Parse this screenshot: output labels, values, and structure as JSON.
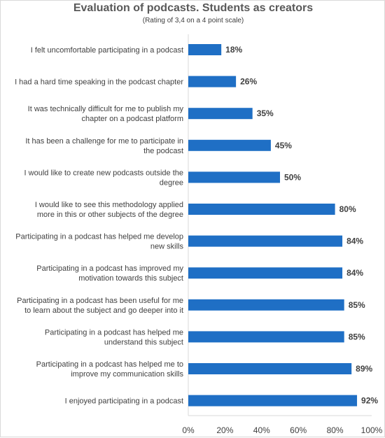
{
  "chart_data": {
    "type": "bar",
    "orientation": "horizontal",
    "title": "Evaluation of podcasts. Students as creators",
    "subtitle": "(Rating of 3,4 on a 4 point scale)",
    "categories": [
      "I felt uncomfortable participating in a podcast",
      "I had a hard time speaking in the podcast chapter",
      "It was technically difficult for me to publish my chapter on a podcast platform",
      "It has been a challenge for me to participate in the podcast",
      "I would like to create new podcasts outside the degree",
      "I would like to see this methodology applied more in this or other subjects of the degree",
      "Participating in a podcast has helped me develop new skills",
      "Participating in a podcast has improved my motivation towards this subject",
      "Participating in a podcast has been useful for me to learn about the subject and go deeper into it",
      "Participating in a podcast has helped me understand this subject",
      "Participating in a podcast has helped me to improve my communication skills",
      "I enjoyed participating in a podcast"
    ],
    "category_lines": [
      [
        "I felt uncomfortable participating in a podcast"
      ],
      [
        "I had a hard time speaking in the podcast chapter"
      ],
      [
        "It was technically difficult for me to publish my",
        "chapter on a podcast platform"
      ],
      [
        "It has been a challenge for me to participate in",
        "the podcast"
      ],
      [
        "I would like to create new podcasts outside the",
        "degree"
      ],
      [
        "I would like to see this methodology applied",
        "more in this or other subjects of the degree"
      ],
      [
        "Participating in a podcast has helped me develop",
        "new skills"
      ],
      [
        "Participating in a podcast has improved my",
        "motivation towards this subject"
      ],
      [
        "Participating in a podcast has been useful for me",
        "to learn about the subject and go deeper into it"
      ],
      [
        "Participating in a podcast has helped me",
        "understand this subject"
      ],
      [
        "Participating in a podcast has helped me to",
        "improve my communication skills"
      ],
      [
        "I enjoyed participating in a podcast"
      ]
    ],
    "values": [
      18,
      26,
      35,
      45,
      50,
      80,
      84,
      84,
      85,
      85,
      89,
      92
    ],
    "value_labels": [
      "18%",
      "26%",
      "35%",
      "45%",
      "50%",
      "80%",
      "84%",
      "84%",
      "85%",
      "85%",
      "89%",
      "92%"
    ],
    "x_ticks": [
      "0%",
      "20%",
      "40%",
      "60%",
      "80%",
      "100%"
    ],
    "xlim": [
      0,
      100
    ],
    "grid": false,
    "legend": "none",
    "bar_color": "#1f6fc5",
    "axis_color": "#d9d9d9",
    "text_color": "#404040"
  }
}
